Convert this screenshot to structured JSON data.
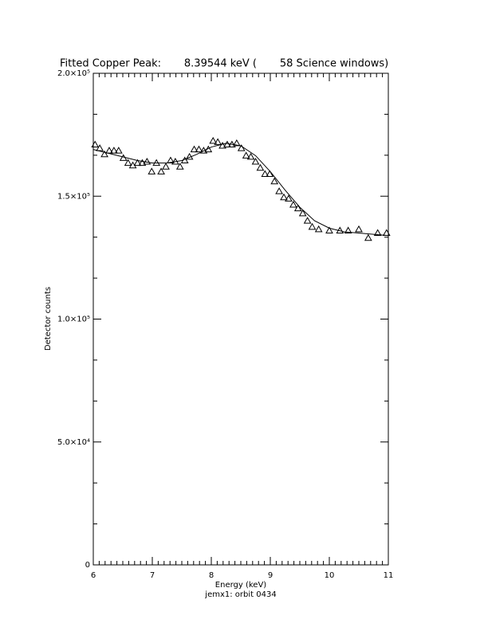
{
  "chart_data": {
    "type": "scatter",
    "title": "Fitted Copper Peak:       8.39544 keV (       58 Science windows)",
    "x_label": "Energy (keV)",
    "subtitle": "jemx1: orbit 0434",
    "y_label": "Detector counts",
    "xlim": [
      6,
      11
    ],
    "xticks": [
      6,
      7,
      8,
      9,
      10,
      11
    ],
    "x_minor_divisions": 10,
    "ylim": [
      0,
      200000
    ],
    "yticks": [
      0,
      {
        "value": 50000,
        "label": "5.0×10⁴"
      },
      {
        "value": 100000,
        "label": "1.0×10⁵"
      },
      {
        "value": 150000,
        "label": "1.5×10⁵"
      },
      {
        "value": 200000,
        "label": "2.0×10⁵"
      }
    ],
    "y_minor_divisions": 3,
    "color": "#000000",
    "series": [
      {
        "marker": "triangle",
        "x": [
          6.03,
          6.11,
          6.19,
          6.27,
          6.35,
          6.43,
          6.51,
          6.59,
          6.67,
          6.75,
          6.83,
          6.91,
          6.99,
          7.07,
          7.15,
          7.23,
          7.31,
          7.39,
          7.47,
          7.55,
          7.63,
          7.71,
          7.79,
          7.87,
          7.95,
          8.03,
          8.11,
          8.19,
          8.27,
          8.35,
          8.43,
          8.51,
          8.59,
          8.67,
          8.75,
          8.83,
          8.91,
          8.99,
          9.07,
          9.15,
          9.23,
          9.31,
          9.39,
          9.47,
          9.55,
          9.63,
          9.71,
          9.82,
          10.0,
          10.18,
          10.32,
          10.5,
          10.66,
          10.82,
          10.97
        ],
        "values": [
          171000,
          169500,
          167000,
          168500,
          168500,
          168500,
          165500,
          163500,
          162500,
          163500,
          163500,
          164000,
          160000,
          163500,
          160000,
          162000,
          164500,
          164000,
          162000,
          164500,
          166000,
          169000,
          169000,
          168500,
          169000,
          172500,
          172000,
          170500,
          171000,
          171000,
          171500,
          169500,
          166500,
          166000,
          164000,
          161500,
          159000,
          159000,
          156000,
          152000,
          149500,
          149000,
          146500,
          145000,
          143000,
          140000,
          137500,
          136500,
          136000,
          136000,
          136000,
          136500,
          133000,
          135000,
          135000
        ]
      },
      {
        "marker": "line",
        "x": [
          6.0,
          6.25,
          6.5,
          6.75,
          7.0,
          7.25,
          7.5,
          7.75,
          8.0,
          8.25,
          8.5,
          8.75,
          9.0,
          9.25,
          9.5,
          9.75,
          10.0,
          10.25,
          10.5,
          10.75,
          11.0
        ],
        "values": [
          169000,
          167500,
          166000,
          164500,
          163500,
          163500,
          164500,
          167000,
          170000,
          171500,
          170500,
          166500,
          160000,
          152500,
          145500,
          140000,
          137000,
          135500,
          135000,
          134500,
          134000
        ]
      }
    ]
  }
}
